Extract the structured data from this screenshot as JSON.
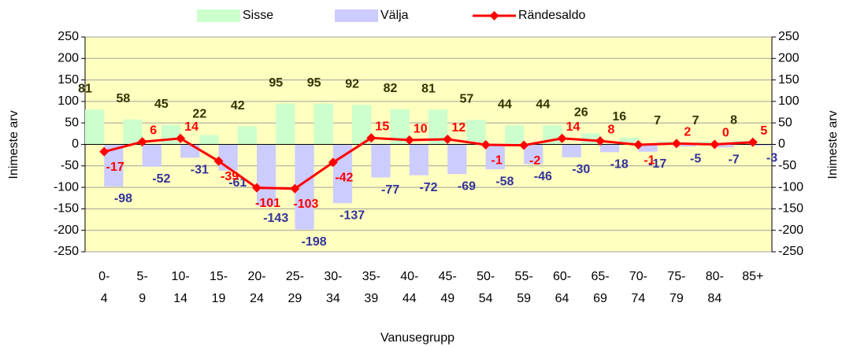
{
  "chart_data": {
    "type": "bar_line",
    "x_label": "Vanusegrupp",
    "y_label": "Inimeste arv",
    "y2_label": "Inimeste arv",
    "categories": [
      "0-4",
      "5-9",
      "10-14",
      "15-19",
      "20-24",
      "25-29",
      "30-34",
      "35-39",
      "40-44",
      "45-49",
      "50-54",
      "55-59",
      "60-64",
      "65-69",
      "70-74",
      "75-79",
      "80-84",
      "85+"
    ],
    "series": [
      {
        "name": "Sisse",
        "type": "bar",
        "color": "#ccffcc",
        "label_color": "#333300",
        "values": [
          81,
          58,
          45,
          22,
          42,
          95,
          95,
          92,
          82,
          81,
          57,
          44,
          44,
          26,
          16,
          7,
          7,
          8
        ]
      },
      {
        "name": "Välja",
        "type": "bar",
        "color": "#ccccff",
        "label_color": "#333399",
        "values": [
          -98,
          -52,
          -31,
          -61,
          -143,
          -198,
          -137,
          -77,
          -72,
          -69,
          -58,
          -46,
          -30,
          -18,
          -17,
          -5,
          -7,
          -3
        ]
      },
      {
        "name": "Rändesaldo",
        "type": "line",
        "color": "#ff0000",
        "label_color": "#ff0000",
        "values": [
          -17,
          6,
          14,
          -39,
          -101,
          -103,
          -42,
          15,
          10,
          12,
          -1,
          -2,
          14,
          8,
          -1,
          2,
          0,
          5
        ]
      }
    ],
    "ylim": [
      -250,
      250
    ],
    "yticks": [
      -250,
      -200,
      -150,
      -100,
      -50,
      0,
      50,
      100,
      150,
      200,
      250
    ],
    "y2lim": [
      -250,
      250
    ],
    "y2ticks": [
      -250,
      -200,
      -150,
      -100,
      -50,
      0,
      50,
      100,
      150,
      200,
      250
    ],
    "grid": true,
    "legend": "top",
    "plot_background": "#ffffc0"
  }
}
